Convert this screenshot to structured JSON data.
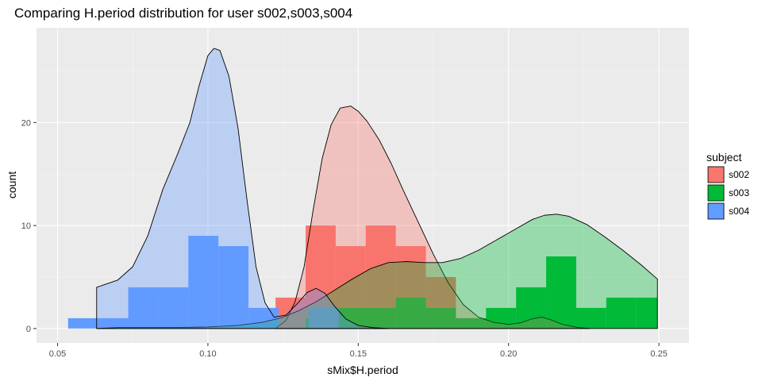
{
  "chart_data": {
    "type": "histogram-density",
    "title": "Comparing H.period distribution for user s002,s003,s004",
    "xlabel": "sMix$H.period",
    "ylabel": "count",
    "xlim": [
      0.043,
      0.26
    ],
    "ylim": [
      -1.4,
      29.2
    ],
    "x_ticks": [
      0.05,
      0.1,
      0.15,
      0.2,
      0.25
    ],
    "x_tick_labels": [
      "0.05",
      "0.10",
      "0.15",
      "0.20",
      "0.25"
    ],
    "y_ticks": [
      0,
      10,
      20
    ],
    "y_tick_labels": [
      "0",
      "10",
      "20"
    ],
    "grid": true,
    "legend": {
      "title": "subject",
      "position": "right"
    },
    "bin_width": 0.01,
    "series": [
      {
        "name": "s002",
        "color": "#F8766D",
        "histogram": [
          {
            "x0": 0.1225,
            "x1": 0.1325,
            "count": 3
          },
          {
            "x0": 0.1325,
            "x1": 0.1425,
            "count": 10
          },
          {
            "x0": 0.1425,
            "x1": 0.1525,
            "count": 8
          },
          {
            "x0": 0.1525,
            "x1": 0.1625,
            "count": 10
          },
          {
            "x0": 0.1625,
            "x1": 0.1725,
            "count": 8
          },
          {
            "x0": 0.1725,
            "x1": 0.1825,
            "count": 5
          },
          {
            "x0": 0.1825,
            "x1": 0.1925,
            "count": 1
          }
        ],
        "density": [
          [
            0.1225,
            0
          ],
          [
            0.126,
            0.8
          ],
          [
            0.129,
            2.6
          ],
          [
            0.132,
            6
          ],
          [
            0.135,
            11.5
          ],
          [
            0.138,
            16.5
          ],
          [
            0.141,
            19.8
          ],
          [
            0.144,
            21.4
          ],
          [
            0.1475,
            21.6
          ],
          [
            0.15,
            21.1
          ],
          [
            0.153,
            20.1
          ],
          [
            0.157,
            18.3
          ],
          [
            0.161,
            16
          ],
          [
            0.165,
            13.4
          ],
          [
            0.17,
            10.3
          ],
          [
            0.175,
            7.2
          ],
          [
            0.18,
            4.4
          ],
          [
            0.185,
            2.3
          ],
          [
            0.19,
            1.1
          ],
          [
            0.195,
            0.6
          ],
          [
            0.2,
            0.4
          ],
          [
            0.204,
            0.55
          ],
          [
            0.208,
            0.95
          ],
          [
            0.211,
            1.1
          ],
          [
            0.214,
            0.85
          ],
          [
            0.218,
            0.4
          ],
          [
            0.223,
            0.1
          ],
          [
            0.227,
            0
          ]
        ]
      },
      {
        "name": "s003",
        "color": "#00BA38",
        "histogram": [
          {
            "x0": 0.1325,
            "x1": 0.1425,
            "count": 1
          },
          {
            "x0": 0.1425,
            "x1": 0.1525,
            "count": 2
          },
          {
            "x0": 0.1525,
            "x1": 0.1625,
            "count": 2
          },
          {
            "x0": 0.1625,
            "x1": 0.1725,
            "count": 3
          },
          {
            "x0": 0.1725,
            "x1": 0.1825,
            "count": 2
          },
          {
            "x0": 0.1825,
            "x1": 0.1925,
            "count": 1
          },
          {
            "x0": 0.1925,
            "x1": 0.2025,
            "count": 2
          },
          {
            "x0": 0.2025,
            "x1": 0.2125,
            "count": 4
          },
          {
            "x0": 0.2125,
            "x1": 0.2225,
            "count": 7
          },
          {
            "x0": 0.2225,
            "x1": 0.2325,
            "count": 2
          },
          {
            "x0": 0.2325,
            "x1": 0.2425,
            "count": 3
          },
          {
            "x0": 0.2425,
            "x1": 0.2495,
            "count": 3
          }
        ],
        "density": [
          [
            0.063,
            0
          ],
          [
            0.07,
            0.1
          ],
          [
            0.08,
            0.1
          ],
          [
            0.09,
            0.1
          ],
          [
            0.1,
            0.15
          ],
          [
            0.11,
            0.3
          ],
          [
            0.118,
            0.6
          ],
          [
            0.124,
            1
          ],
          [
            0.13,
            1.7
          ],
          [
            0.136,
            2.6
          ],
          [
            0.142,
            3.7
          ],
          [
            0.148,
            4.8
          ],
          [
            0.154,
            5.8
          ],
          [
            0.16,
            6.4
          ],
          [
            0.166,
            6.5
          ],
          [
            0.172,
            6.4
          ],
          [
            0.178,
            6.4
          ],
          [
            0.184,
            6.8
          ],
          [
            0.19,
            7.6
          ],
          [
            0.196,
            8.6
          ],
          [
            0.202,
            9.6
          ],
          [
            0.208,
            10.6
          ],
          [
            0.212,
            11.0
          ],
          [
            0.216,
            11.1
          ],
          [
            0.22,
            10.9
          ],
          [
            0.226,
            10.1
          ],
          [
            0.232,
            8.9
          ],
          [
            0.238,
            7.6
          ],
          [
            0.244,
            6.2
          ],
          [
            0.2495,
            4.8
          ],
          [
            0.2495,
            0
          ]
        ]
      },
      {
        "name": "s004",
        "color": "#619CFF",
        "histogram": [
          {
            "x0": 0.0535,
            "x1": 0.0635,
            "count": 1
          },
          {
            "x0": 0.0635,
            "x1": 0.0735,
            "count": 1
          },
          {
            "x0": 0.0735,
            "x1": 0.0835,
            "count": 4
          },
          {
            "x0": 0.0835,
            "x1": 0.0935,
            "count": 4
          },
          {
            "x0": 0.0935,
            "x1": 0.1035,
            "count": 9
          },
          {
            "x0": 0.1035,
            "x1": 0.1135,
            "count": 8
          },
          {
            "x0": 0.1135,
            "x1": 0.1235,
            "count": 2
          },
          {
            "x0": 0.1335,
            "x1": 0.1435,
            "count": 2
          }
        ],
        "density": [
          [
            0.063,
            0
          ],
          [
            0.063,
            4
          ],
          [
            0.07,
            4.7
          ],
          [
            0.075,
            6
          ],
          [
            0.08,
            9
          ],
          [
            0.085,
            13.5
          ],
          [
            0.09,
            17
          ],
          [
            0.094,
            20
          ],
          [
            0.097,
            23.5
          ],
          [
            0.1,
            26.5
          ],
          [
            0.102,
            27.2
          ],
          [
            0.104,
            27
          ],
          [
            0.107,
            24.5
          ],
          [
            0.11,
            19.5
          ],
          [
            0.113,
            12.5
          ],
          [
            0.116,
            6
          ],
          [
            0.119,
            2.5
          ],
          [
            0.122,
            1.1
          ],
          [
            0.126,
            1.3
          ],
          [
            0.13,
            2.5
          ],
          [
            0.133,
            3.5
          ],
          [
            0.136,
            3.9
          ],
          [
            0.139,
            3.4
          ],
          [
            0.142,
            2.2
          ],
          [
            0.146,
            0.9
          ],
          [
            0.15,
            0.3
          ],
          [
            0.155,
            0.08
          ],
          [
            0.16,
            0
          ]
        ]
      }
    ]
  }
}
